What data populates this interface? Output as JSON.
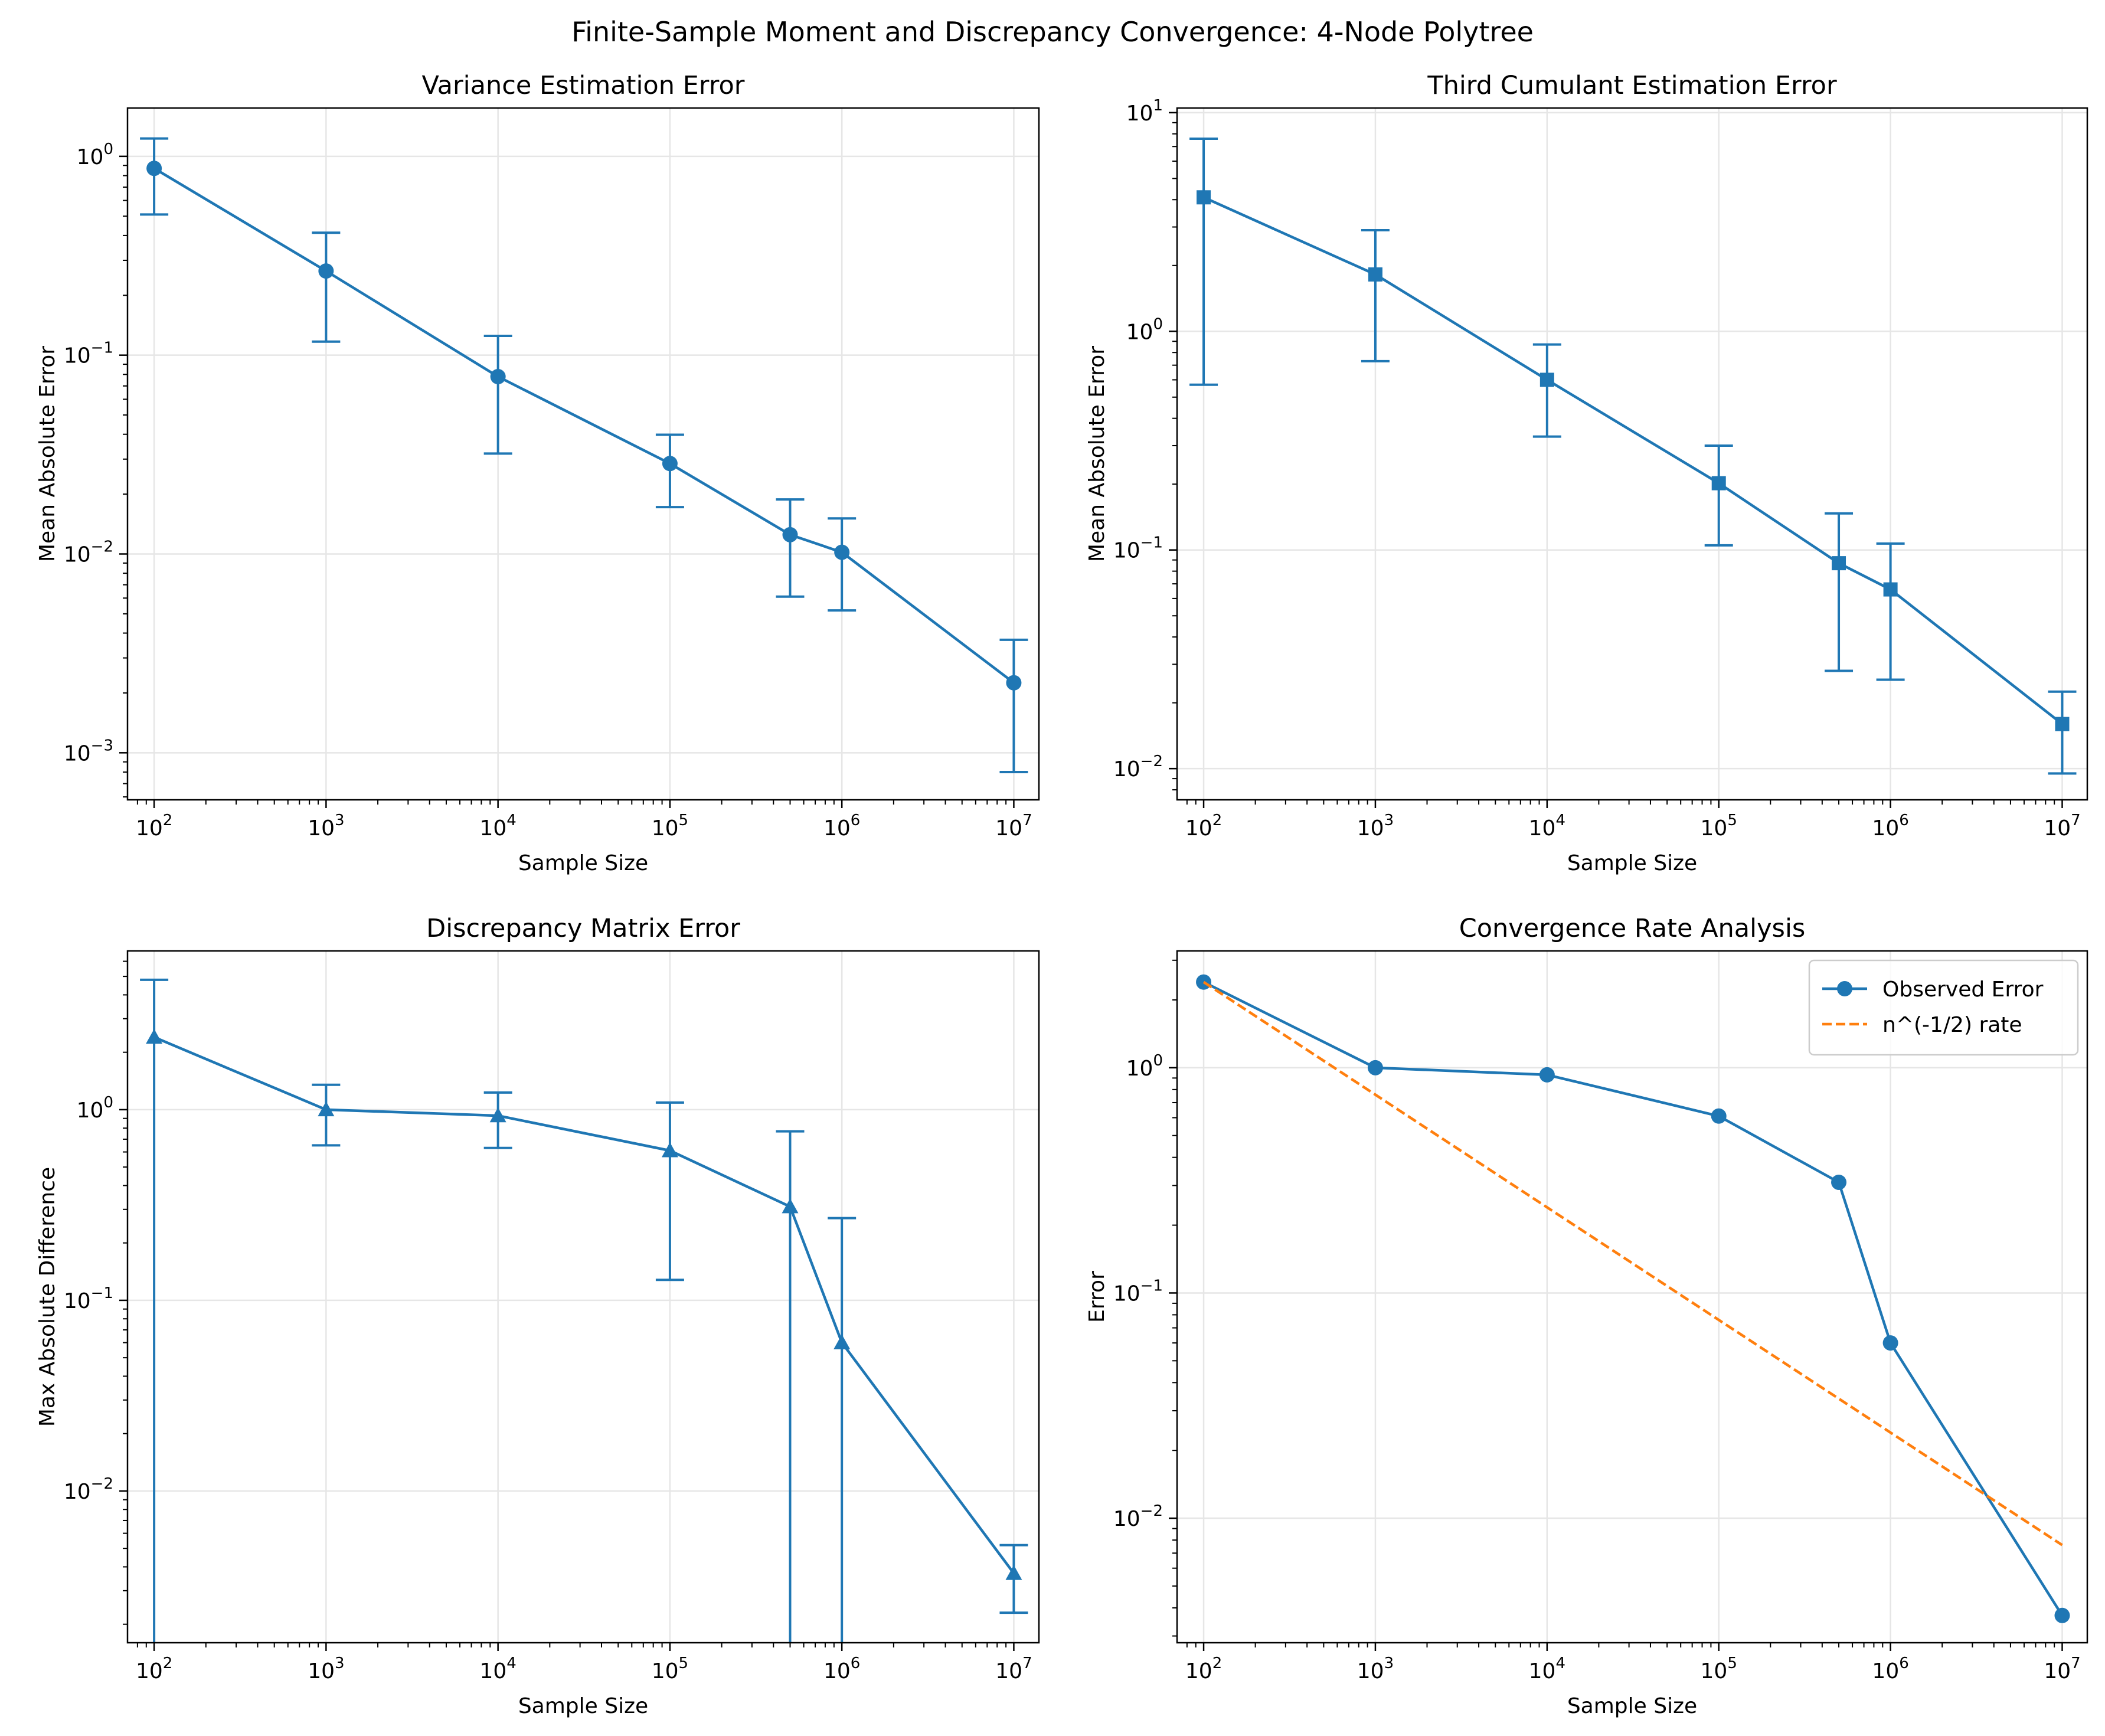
{
  "figure": {
    "suptitle": "Finite-Sample Moment and Discrepancy Convergence: 4-Node Polytree",
    "colors": {
      "primary": "#1f77b4",
      "secondary": "#ff7f0e",
      "grid": "#e6e6e6",
      "axis": "#000000"
    }
  },
  "chart_data": [
    {
      "type": "line",
      "title": "Variance Estimation Error",
      "xlabel": "Sample Size",
      "ylabel": "Mean Absolute Error",
      "xscale": "log",
      "yscale": "log",
      "xlim": [
        70,
        14000000
      ],
      "ylim": [
        0.00058,
        1.75
      ],
      "xticks": [
        {
          "v": 100,
          "exp": "2"
        },
        {
          "v": 1000,
          "exp": "3"
        },
        {
          "v": 10000,
          "exp": "4"
        },
        {
          "v": 100000,
          "exp": "5"
        },
        {
          "v": 1000000,
          "exp": "6"
        },
        {
          "v": 10000000,
          "exp": "7"
        }
      ],
      "yticks": [
        {
          "v": 0.001,
          "exp": "−3"
        },
        {
          "v": 0.01,
          "exp": "−2"
        },
        {
          "v": 0.1,
          "exp": "−1"
        },
        {
          "v": 1,
          "exp": "0"
        }
      ],
      "marker": "circle",
      "grid": true,
      "series": [
        {
          "x": [
            100,
            1000,
            10000,
            100000,
            500000,
            1000000,
            10000000
          ],
          "y": [
            0.87,
            0.265,
            0.078,
            0.0285,
            0.0125,
            0.0102,
            0.00225
          ],
          "err_low": [
            0.51,
            0.117,
            0.032,
            0.0172,
            0.0061,
            0.0052,
            0.0008
          ],
          "err_high": [
            1.23,
            0.413,
            0.125,
            0.0398,
            0.0188,
            0.0151,
            0.0037
          ]
        }
      ]
    },
    {
      "type": "line",
      "title": "Third Cumulant Estimation Error",
      "xlabel": "Sample Size",
      "ylabel": "Mean Absolute Error",
      "xscale": "log",
      "yscale": "log",
      "xlim": [
        70,
        14000000
      ],
      "ylim": [
        0.0072,
        10.5
      ],
      "xticks": [
        {
          "v": 100,
          "exp": "2"
        },
        {
          "v": 1000,
          "exp": "3"
        },
        {
          "v": 10000,
          "exp": "4"
        },
        {
          "v": 100000,
          "exp": "5"
        },
        {
          "v": 1000000,
          "exp": "6"
        },
        {
          "v": 10000000,
          "exp": "7"
        }
      ],
      "yticks": [
        {
          "v": 0.01,
          "exp": "−2"
        },
        {
          "v": 0.1,
          "exp": "−1"
        },
        {
          "v": 1,
          "exp": "0"
        },
        {
          "v": 10,
          "exp": "1"
        }
      ],
      "marker": "square",
      "grid": true,
      "series": [
        {
          "x": [
            100,
            1000,
            10000,
            100000,
            500000,
            1000000,
            10000000
          ],
          "y": [
            4.1,
            1.82,
            0.6,
            0.202,
            0.087,
            0.066,
            0.016
          ],
          "err_low": [
            0.57,
            0.73,
            0.33,
            0.105,
            0.028,
            0.0255,
            0.0095
          ],
          "err_high": [
            7.6,
            2.9,
            0.87,
            0.3,
            0.147,
            0.107,
            0.0225
          ]
        }
      ]
    },
    {
      "type": "line",
      "title": "Discrepancy Matrix Error",
      "xlabel": "Sample Size",
      "ylabel": "Max Absolute Difference",
      "xscale": "log",
      "yscale": "log",
      "xlim": [
        70,
        14000000
      ],
      "ylim": [
        0.0016,
        6.8
      ],
      "xticks": [
        {
          "v": 100,
          "exp": "2"
        },
        {
          "v": 1000,
          "exp": "3"
        },
        {
          "v": 10000,
          "exp": "4"
        },
        {
          "v": 100000,
          "exp": "5"
        },
        {
          "v": 1000000,
          "exp": "6"
        },
        {
          "v": 10000000,
          "exp": "7"
        }
      ],
      "yticks": [
        {
          "v": 0.01,
          "exp": "−2"
        },
        {
          "v": 0.1,
          "exp": "−1"
        },
        {
          "v": 1,
          "exp": "0"
        }
      ],
      "marker": "triangle",
      "grid": true,
      "series": [
        {
          "x": [
            100,
            1000,
            10000,
            100000,
            500000,
            1000000,
            10000000
          ],
          "y": [
            2.4,
            1.0,
            0.93,
            0.61,
            0.31,
            0.06,
            0.0037
          ],
          "err_low": [
            0.0001,
            0.65,
            0.63,
            0.128,
            0.0001,
            0.0001,
            0.0023
          ],
          "err_high": [
            4.8,
            1.35,
            1.23,
            1.09,
            0.77,
            0.27,
            0.0052
          ]
        }
      ]
    },
    {
      "type": "line",
      "title": "Convergence Rate Analysis",
      "xlabel": "Sample Size",
      "ylabel": "Error",
      "xscale": "log",
      "yscale": "log",
      "xlim": [
        70,
        14000000
      ],
      "ylim": [
        0.0028,
        3.3
      ],
      "xticks": [
        {
          "v": 100,
          "exp": "2"
        },
        {
          "v": 1000,
          "exp": "3"
        },
        {
          "v": 10000,
          "exp": "4"
        },
        {
          "v": 100000,
          "exp": "5"
        },
        {
          "v": 1000000,
          "exp": "6"
        },
        {
          "v": 10000000,
          "exp": "7"
        }
      ],
      "yticks": [
        {
          "v": 0.01,
          "exp": "−2"
        },
        {
          "v": 0.1,
          "exp": "−1"
        },
        {
          "v": 1,
          "exp": "0"
        }
      ],
      "grid": true,
      "legend": "top-right",
      "series": [
        {
          "name": "Observed Error",
          "style": "solid",
          "marker": "circle",
          "color": "#1f77b4",
          "x": [
            100,
            1000,
            10000,
            100000,
            500000,
            1000000,
            10000000
          ],
          "y": [
            2.4,
            1.0,
            0.93,
            0.61,
            0.31,
            0.06,
            0.0037
          ]
        },
        {
          "name": "n^(-1/2) rate",
          "style": "dashed",
          "marker": "none",
          "color": "#ff7f0e",
          "x": [
            100,
            1000,
            10000,
            100000,
            1000000,
            10000000
          ],
          "y": [
            2.4,
            0.759,
            0.24,
            0.0759,
            0.024,
            0.0076
          ]
        }
      ]
    }
  ]
}
